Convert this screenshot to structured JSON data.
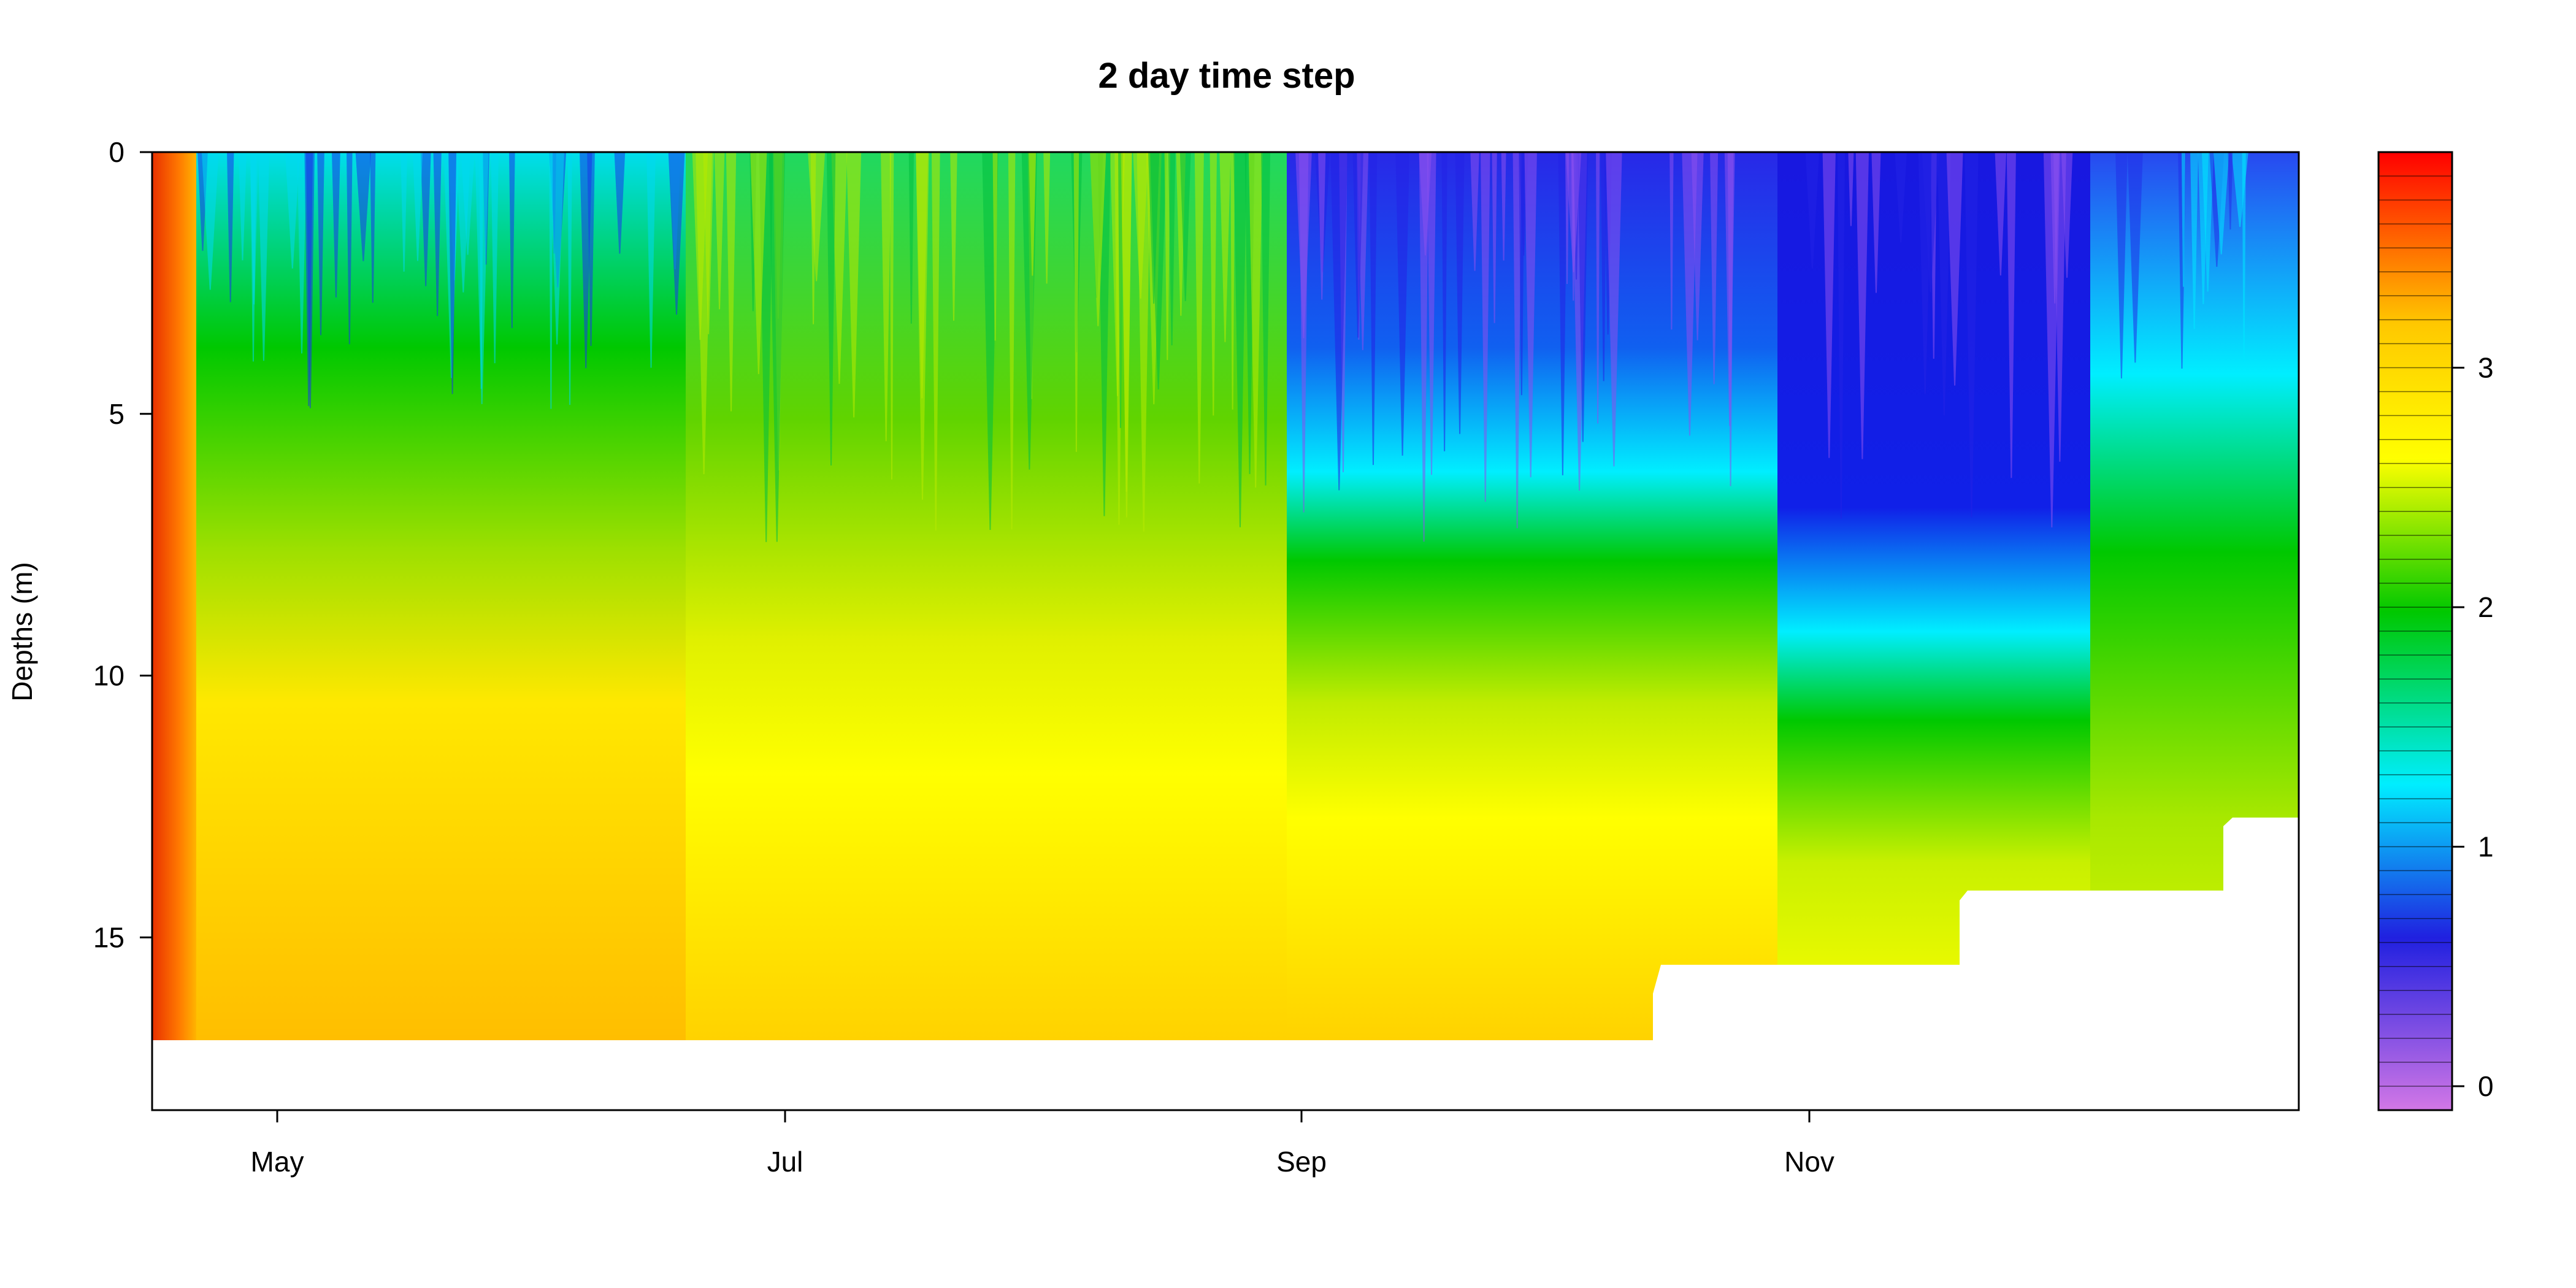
{
  "chart_data": {
    "type": "heatmap",
    "title": "2 day time step",
    "xlabel": "",
    "ylabel": "Depths (m)",
    "x_ticks": [
      "May",
      "Jul",
      "Sep",
      "Nov"
    ],
    "y_ticks": [
      0,
      5,
      10,
      15
    ],
    "ylim": [
      0,
      18.3
    ],
    "y_reversed": true,
    "colorbar": {
      "ticks": [
        0,
        1,
        2,
        3
      ],
      "range": [
        -0.1,
        3.9
      ],
      "palette": [
        "#d277e6",
        "#2020e0",
        "#00eeff",
        "#00c800",
        "#ffff00",
        "#ffc800",
        "#ff0000"
      ]
    },
    "bottom_depth_profile": [
      {
        "from": "Apr",
        "to": "mid Oct",
        "max_depth": 16.9
      },
      {
        "from": "mid Oct",
        "to": "early Nov",
        "max_depth": 15.5
      },
      {
        "from": "early Nov",
        "to": "mid Dec",
        "max_depth": 14.1
      },
      {
        "from": "mid Dec",
        "to": "end",
        "max_depth": 12.7
      }
    ],
    "value_bands": [
      {
        "period": "early Apr",
        "surface": 3.6,
        "deep": 3.6
      },
      {
        "period": "mid Apr - May",
        "surface": 1.6,
        "deep": 3.0
      },
      {
        "period": "May - Jun",
        "surface": 1.2,
        "deep": 2.8
      },
      {
        "period": "Jun - Aug",
        "surface": 2.1,
        "deep": 2.8
      },
      {
        "period": "Sep - Oct",
        "surface": 0.8,
        "deep": 2.8
      },
      {
        "period": "Nov - Dec",
        "surface": 0.6,
        "deep": 2.6
      },
      {
        "period": "late Dec",
        "surface": 1.0,
        "deep": 2.3
      }
    ]
  }
}
